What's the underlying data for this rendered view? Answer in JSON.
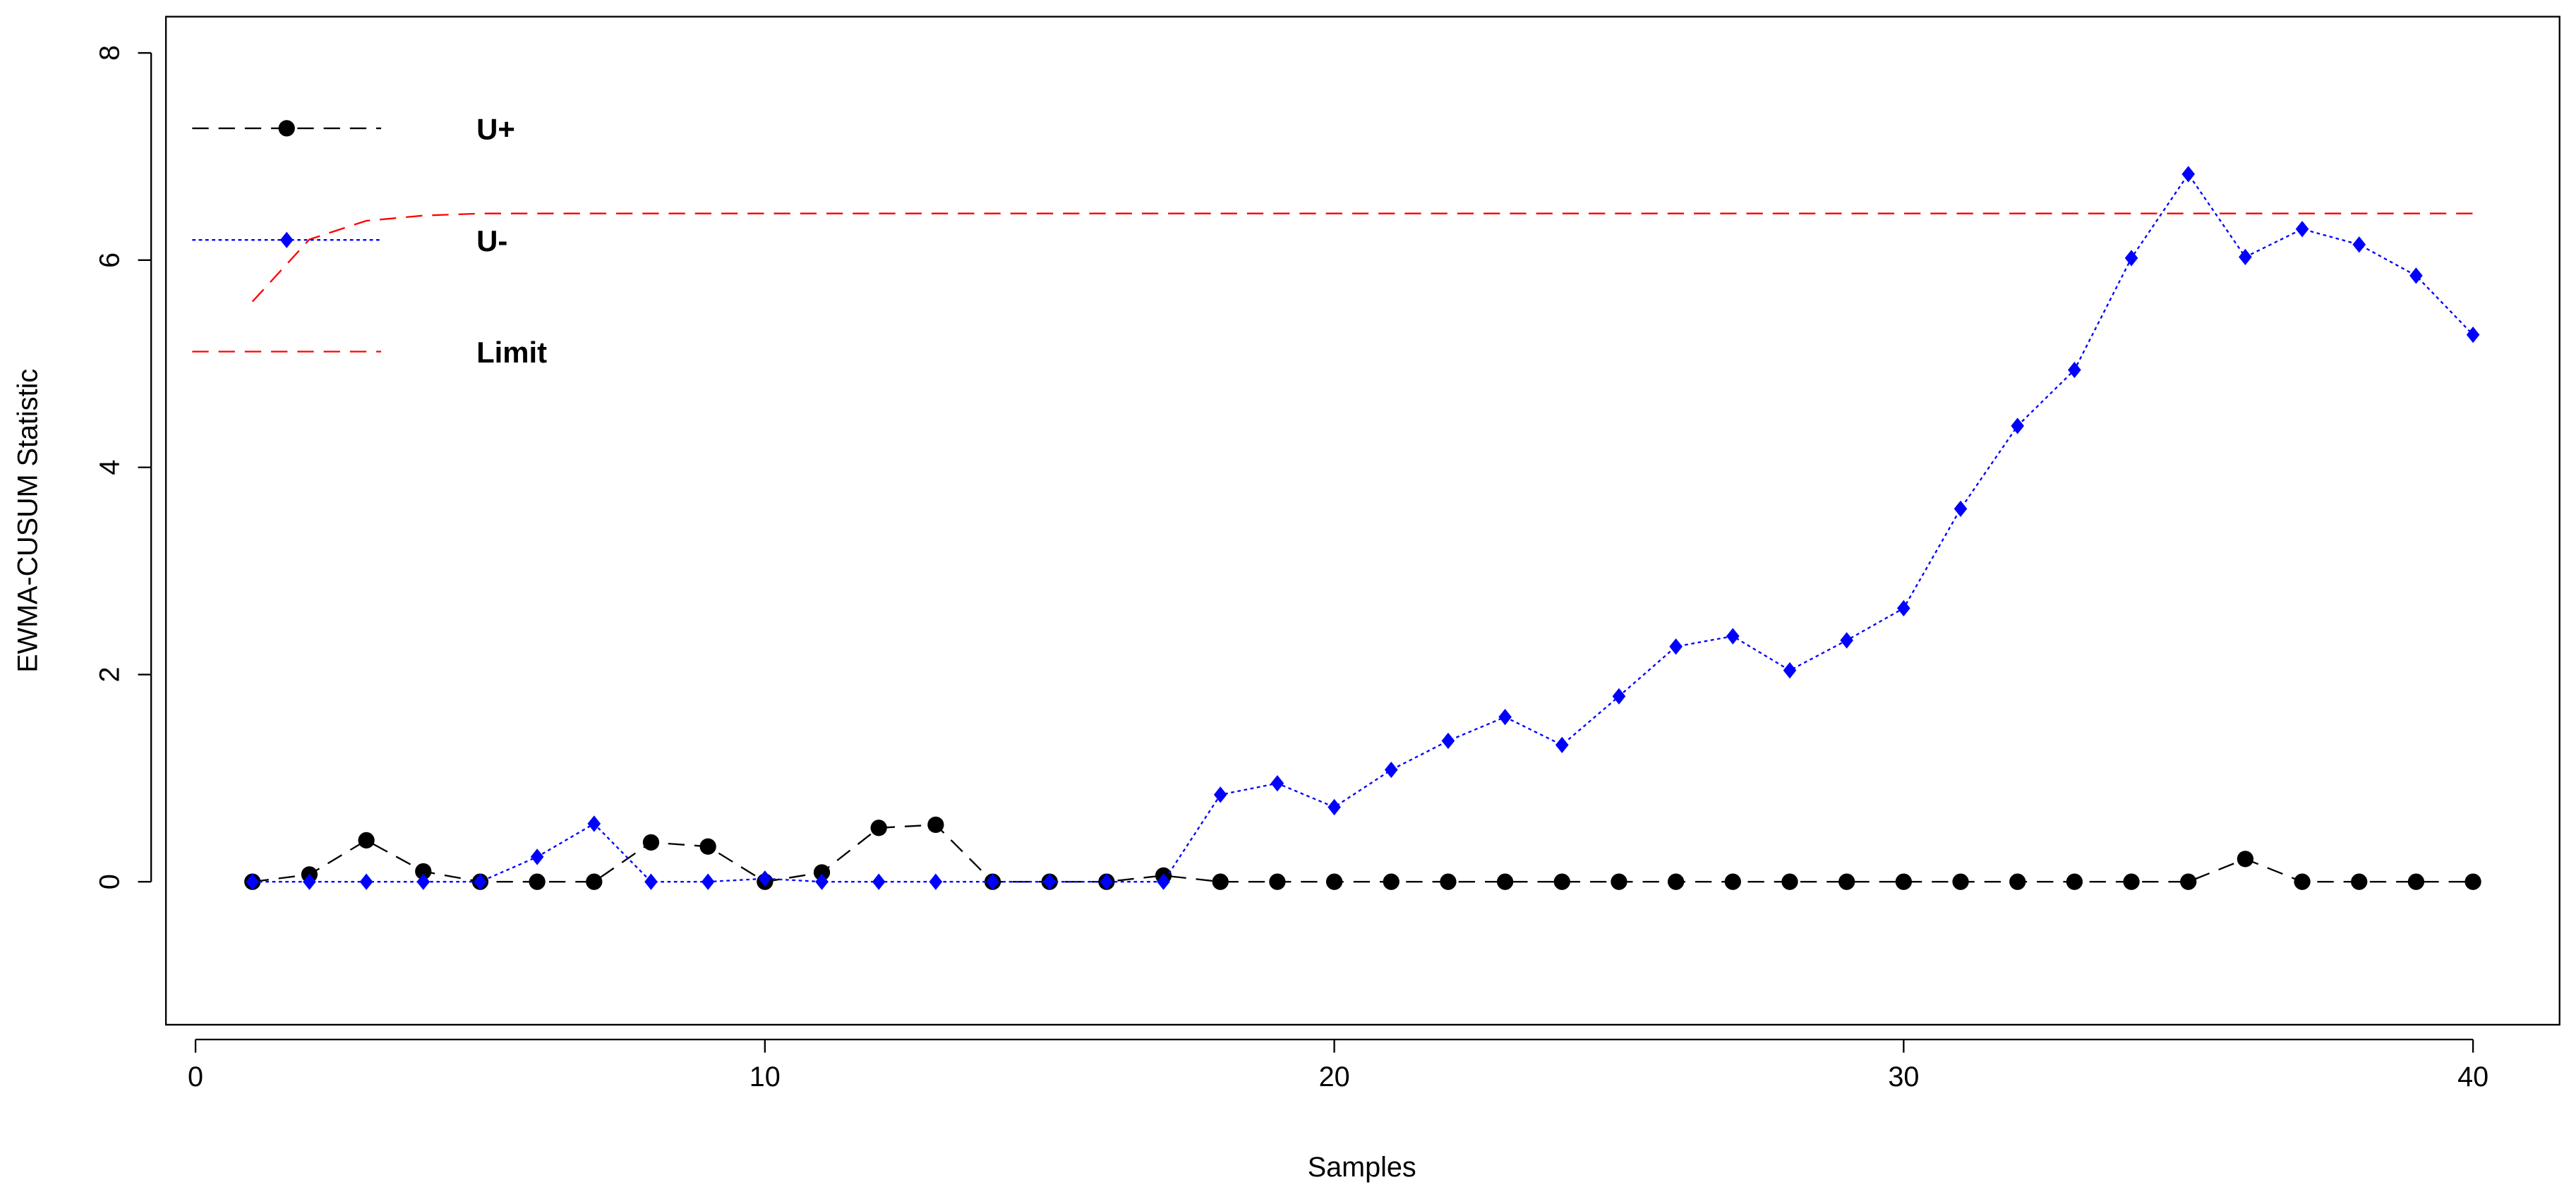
{
  "chart_data": {
    "type": "line",
    "xlabel": "Samples",
    "ylabel": "EWMA-CUSUM Statistic",
    "x": [
      1,
      2,
      3,
      4,
      5,
      6,
      7,
      8,
      9,
      10,
      11,
      12,
      13,
      14,
      15,
      16,
      17,
      18,
      19,
      20,
      21,
      22,
      23,
      24,
      25,
      26,
      27,
      28,
      29,
      30,
      31,
      32,
      33,
      34,
      35,
      36,
      37,
      38,
      39,
      40
    ],
    "series": [
      {
        "name": "U+",
        "color": "#000000",
        "line": "dashed",
        "marker": "circle",
        "values": [
          0,
          0.07,
          0.4,
          0.1,
          0,
          0,
          0,
          0.38,
          0.34,
          0,
          0.09,
          0.52,
          0.55,
          0,
          0,
          0,
          0.06,
          0,
          0,
          0,
          0,
          0,
          0,
          0,
          0,
          0,
          0,
          0,
          0,
          0,
          0,
          0,
          0,
          0,
          0,
          0.22,
          0,
          0,
          0,
          0
        ]
      },
      {
        "name": "U-",
        "color": "#0000ff",
        "line": "dotted",
        "marker": "diamond",
        "values": [
          0,
          0,
          0,
          0,
          0,
          0.24,
          0.56,
          0,
          0,
          0.03,
          0,
          0,
          0,
          0,
          0,
          0,
          0,
          0.84,
          0.95,
          0.72,
          1.08,
          1.36,
          1.59,
          1.32,
          1.79,
          2.27,
          2.37,
          2.04,
          2.33,
          2.64,
          3.6,
          4.4,
          4.94,
          6.02,
          6.83,
          6.03,
          6.3,
          6.15,
          5.85,
          5.28
        ]
      },
      {
        "name": "Limit",
        "color": "#ff0000",
        "line": "dashed",
        "marker": "none",
        "values": [
          5.6,
          6.2,
          6.38,
          6.43,
          6.45,
          6.45,
          6.45,
          6.45,
          6.45,
          6.45,
          6.45,
          6.45,
          6.45,
          6.45,
          6.45,
          6.45,
          6.45,
          6.45,
          6.45,
          6.45,
          6.45,
          6.45,
          6.45,
          6.45,
          6.45,
          6.45,
          6.45,
          6.45,
          6.45,
          6.45,
          6.45,
          6.45,
          6.45,
          6.45,
          6.45,
          6.45,
          6.45,
          6.45,
          6.45,
          6.45
        ]
      }
    ],
    "xlim": [
      -0.52,
      41.52
    ],
    "xticks": [
      0,
      10,
      20,
      30,
      40
    ],
    "ylim": [
      -1.38,
      8.35
    ],
    "yticks": [
      0,
      2,
      4,
      6,
      8
    ],
    "legend": "topleft",
    "grid": false
  }
}
